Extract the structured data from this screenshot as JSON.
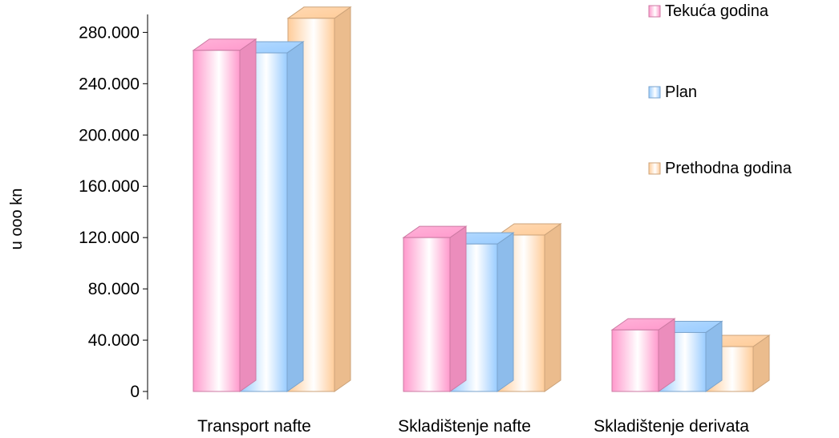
{
  "chart_data": {
    "type": "bar",
    "ylabel": "u ooo kn",
    "ylim": [
      0,
      280000
    ],
    "yticks": [
      0,
      40000,
      80000,
      120000,
      160000,
      200000,
      240000,
      280000
    ],
    "ytick_labels": [
      "0",
      "40.000",
      "80.000",
      "120.000",
      "160.000",
      "200.000",
      "240.000",
      "280.000"
    ],
    "categories": [
      "Transport nafte",
      "Skladištenje nafte",
      "Skladištenje derivata"
    ],
    "series": [
      {
        "name": "Tekuća godina",
        "color": "#ff99cc",
        "values": [
          266000,
          120000,
          48000
        ]
      },
      {
        "name": "Plan",
        "color": "#99ccff",
        "values": [
          264000,
          115000,
          46000
        ]
      },
      {
        "name": "Prethodna godina",
        "color": "#ffcc99",
        "values": [
          291000,
          122000,
          35000
        ]
      }
    ],
    "legend_position": "right",
    "grid": false
  }
}
